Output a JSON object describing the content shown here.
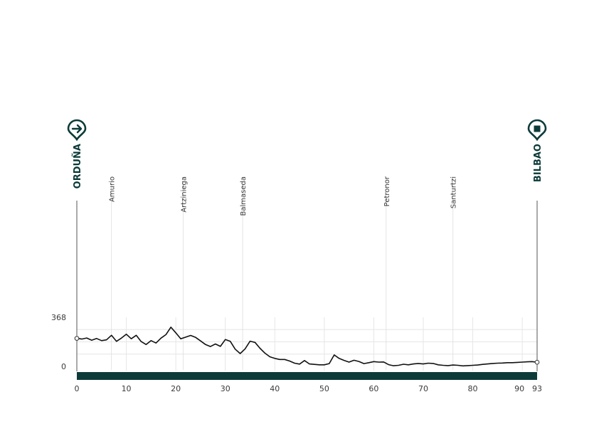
{
  "chart_data": {
    "type": "area",
    "title": "",
    "xlabel": "",
    "ylabel": "",
    "xlim": [
      0,
      93
    ],
    "ylim": [
      0,
      368
    ],
    "x_ticks": [
      0,
      10,
      20,
      30,
      40,
      50,
      60,
      70,
      80,
      90,
      93
    ],
    "y_ticks": [
      0,
      368
    ],
    "start": {
      "name": "ORDUÑA",
      "km": 0,
      "icon": "arrow-right-pin-icon"
    },
    "finish": {
      "name": "BILBAO",
      "km": 93,
      "icon": "stop-square-pin-icon"
    },
    "towns": [
      {
        "name": "Amurio",
        "km": 7
      },
      {
        "name": "Artziniega",
        "km": 21.5
      },
      {
        "name": "Balmaseda",
        "km": 33.5
      },
      {
        "name": "Petronor",
        "km": 62.5
      },
      {
        "name": "Santurtzi",
        "km": 76
      }
    ],
    "colors": {
      "profile": "#111111",
      "bar": "#0d3b3a",
      "grid": "#e6e6e6",
      "accent": "#0d3b3a"
    },
    "series": [
      {
        "x": [
          0,
          1,
          2,
          3,
          4,
          5,
          6,
          7,
          8,
          9,
          10,
          11,
          12,
          13,
          14,
          15,
          16,
          17,
          18,
          19,
          20,
          21,
          22,
          23,
          24,
          25,
          26,
          27,
          28,
          29,
          30,
          31,
          32,
          33,
          34,
          35,
          36,
          37,
          38,
          39,
          40,
          41,
          42,
          43,
          44,
          45,
          46,
          47,
          48,
          49,
          50,
          51,
          52,
          53,
          54,
          55,
          56,
          57,
          58,
          59,
          60,
          61,
          62,
          63,
          64,
          65,
          66,
          67,
          68,
          69,
          70,
          71,
          72,
          73,
          74,
          75,
          76,
          77,
          78,
          79,
          80,
          81,
          82,
          83,
          84,
          85,
          86,
          87,
          88,
          89,
          90,
          91,
          92,
          93
        ],
        "values": [
          210,
          205,
          213,
          196,
          209,
          193,
          199,
          233,
          188,
          212,
          241,
          207,
          233,
          186,
          164,
          193,
          175,
          212,
          238,
          294,
          252,
          207,
          219,
          232,
          217,
          191,
          164,
          149,
          168,
          150,
          201,
          188,
          129,
          96,
          131,
          189,
          180,
          136,
          99,
          72,
          60,
          52,
          52,
          40,
          24,
          17,
          44,
          18,
          15,
          12,
          12,
          21,
          86,
          60,
          45,
          32,
          46,
          37,
          21,
          28,
          36,
          32,
          33,
          13,
          5,
          8,
          16,
          12,
          18,
          22,
          18,
          24,
          22,
          12,
          8,
          6,
          10,
          8,
          4,
          6,
          8,
          10,
          15,
          18,
          22,
          24,
          25,
          28,
          28,
          30,
          32,
          34,
          36,
          31
        ]
      }
    ]
  }
}
